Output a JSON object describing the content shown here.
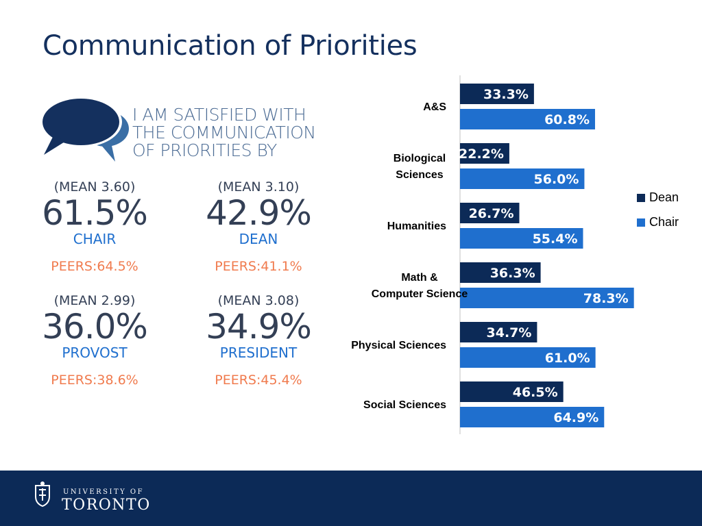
{
  "title": "Communication of Priorities",
  "headline": [
    "I AM SATISFIED WITH",
    "THE COMMUNICATION",
    "OF PRIORITIES BY"
  ],
  "stats": [
    {
      "mean": "(MEAN 3.60)",
      "pct": "61.5%",
      "role": "CHAIR",
      "peers": "PEERS:64.5%"
    },
    {
      "mean": "(MEAN 3.10)",
      "pct": "42.9%",
      "role": "DEAN",
      "peers": "PEERS:41.1%"
    },
    {
      "mean": "(MEAN 2.99)",
      "pct": "36.0%",
      "role": "PROVOST",
      "peers": "PEERS:38.6%"
    },
    {
      "mean": "(MEAN 3.08)",
      "pct": "34.9%",
      "role": "PRESIDENT",
      "peers": "PEERS:45.4%"
    }
  ],
  "colors": {
    "dean": "#0c2a57",
    "chair": "#1f6fce",
    "title": "#14305e",
    "peers": "#f07b4e",
    "footer": "#0c2a57"
  },
  "chart_data": {
    "type": "bar",
    "orientation": "horizontal",
    "categories": [
      "A&S",
      "Biological Sciences",
      "Humanities",
      "Math & Computer Science",
      "Physical Sciences",
      "Social Sciences"
    ],
    "category_lines": [
      [
        "A&S"
      ],
      [
        "Biological",
        "Sciences"
      ],
      [
        "Humanities"
      ],
      [
        "Math &",
        "Computer Science"
      ],
      [
        "Physical Sciences"
      ],
      [
        "Social Sciences"
      ]
    ],
    "series": [
      {
        "name": "Dean",
        "values": [
          33.3,
          22.2,
          26.7,
          36.3,
          34.7,
          46.5
        ],
        "labels": [
          "33.3%",
          "22.2%",
          "26.7%",
          "36.3%",
          "34.7%",
          "46.5%"
        ]
      },
      {
        "name": "Chair",
        "values": [
          60.8,
          56.0,
          55.4,
          78.3,
          61.0,
          64.9
        ],
        "labels": [
          "60.8%",
          "56.0%",
          "55.4%",
          "78.3%",
          "61.0%",
          "64.9%"
        ]
      }
    ],
    "legend": "right",
    "grid": false
  },
  "footer": {
    "line1": "UNIVERSITY OF",
    "line2": "TORONTO"
  }
}
